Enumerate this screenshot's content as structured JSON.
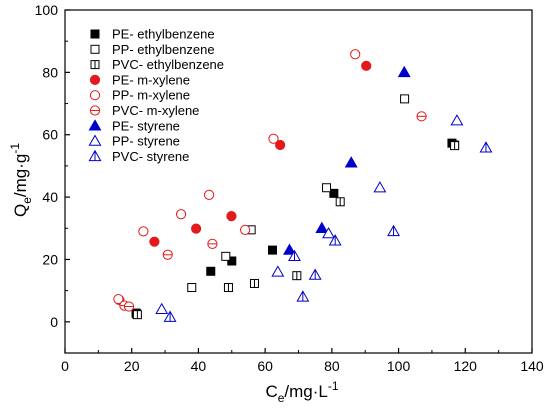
{
  "chart_data": {
    "type": "scatter",
    "title": "",
    "xlabel": {
      "main": "C",
      "sub": "e",
      "rest": "/mg·L",
      "sup": "-1"
    },
    "ylabel": {
      "main": "Q",
      "sub": "e",
      "rest": "/mg·g",
      "sup": "-1"
    },
    "xlim": [
      0,
      140
    ],
    "ylim": [
      -10,
      100
    ],
    "xticks": [
      0,
      20,
      40,
      60,
      80,
      100,
      120,
      140
    ],
    "yticks": [
      0,
      20,
      40,
      60,
      80,
      100
    ],
    "grid": false,
    "legend_position": "top-left",
    "series": [
      {
        "name": "PE- ethylbenzene",
        "marker": "square",
        "fill": "filled",
        "color": "#000000",
        "points": [
          [
            21.3,
            2.8
          ],
          [
            43.7,
            16.2
          ],
          [
            50.0,
            19.5
          ],
          [
            62.2,
            23.0
          ],
          [
            80.6,
            41.2
          ],
          [
            116.0,
            57.3
          ]
        ]
      },
      {
        "name": "PP- ethylbenzene",
        "marker": "square",
        "fill": "open",
        "color": "#000000",
        "points": [
          [
            21.5,
            2.5
          ],
          [
            38.0,
            11.0
          ],
          [
            48.2,
            21.0
          ],
          [
            55.8,
            29.5
          ],
          [
            78.4,
            43.0
          ],
          [
            101.8,
            71.5
          ],
          [
            116.8,
            56.7
          ]
        ]
      },
      {
        "name": "PVC- ethylbenzene",
        "marker": "square-cross",
        "fill": "open",
        "color": "#000000",
        "points": [
          [
            21.7,
            2.3
          ],
          [
            49.0,
            11.0
          ],
          [
            56.8,
            12.3
          ],
          [
            69.5,
            14.8
          ],
          [
            82.5,
            38.5
          ],
          [
            116.8,
            56.5
          ]
        ]
      },
      {
        "name": "PE- m-xylene",
        "marker": "circle",
        "fill": "filled",
        "color": "#e31a1c",
        "points": [
          [
            16.3,
            7.0
          ],
          [
            26.8,
            25.7
          ],
          [
            39.3,
            29.9
          ],
          [
            49.9,
            33.9
          ],
          [
            64.5,
            56.7
          ],
          [
            90.3,
            82.1
          ]
        ]
      },
      {
        "name": "PP- m-xylene",
        "marker": "circle",
        "fill": "open",
        "color": "#e31a1c",
        "points": [
          [
            16.0,
            7.3
          ],
          [
            23.5,
            29.0
          ],
          [
            34.8,
            34.5
          ],
          [
            43.2,
            40.7
          ],
          [
            54.0,
            29.5
          ],
          [
            62.5,
            58.7
          ],
          [
            87.0,
            85.8
          ]
        ]
      },
      {
        "name": "PVC- m-xylene",
        "marker": "circle-line",
        "fill": "open",
        "color": "#e31a1c",
        "points": [
          [
            17.8,
            5.2
          ],
          [
            19.2,
            4.9
          ],
          [
            30.8,
            21.5
          ],
          [
            44.2,
            25.0
          ],
          [
            106.9,
            65.9
          ]
        ]
      },
      {
        "name": "PE- styrene",
        "marker": "triangle",
        "fill": "filled",
        "color": "#0000cc",
        "points": [
          [
            67.3,
            23.0
          ],
          [
            77.0,
            30.0
          ],
          [
            85.8,
            51.0
          ],
          [
            101.7,
            80.0
          ]
        ]
      },
      {
        "name": "PP- styrene",
        "marker": "triangle",
        "fill": "open",
        "color": "#0000cc",
        "points": [
          [
            29.0,
            4.0
          ],
          [
            63.8,
            16.0
          ],
          [
            79.0,
            28.3
          ],
          [
            94.4,
            43.0
          ],
          [
            117.5,
            64.5
          ]
        ]
      },
      {
        "name": "PVC- styrene",
        "marker": "triangle-line",
        "fill": "open",
        "color": "#0000cc",
        "points": [
          [
            31.5,
            1.5
          ],
          [
            68.8,
            21.0
          ],
          [
            71.3,
            8.0
          ],
          [
            75.0,
            15.0
          ],
          [
            81.0,
            26.0
          ],
          [
            98.5,
            29.0
          ],
          [
            126.2,
            55.8
          ]
        ]
      }
    ]
  }
}
